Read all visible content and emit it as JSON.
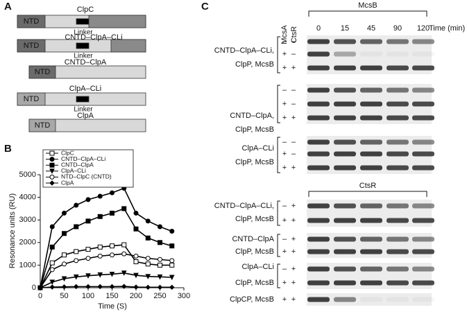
{
  "panel_a": {
    "letter": "A",
    "constructs": [
      {
        "name": "ClpC",
        "ntd": "NTD",
        "linker": "Linker"
      },
      {
        "name": "CNTD–ClpA–CLi",
        "ntd": "NTD",
        "linker": "Linker"
      },
      {
        "name": "CNTD–ClpA",
        "ntd": "NTD"
      },
      {
        "name": "ClpA–CLi",
        "ntd": "NTD",
        "linker": "Linker"
      },
      {
        "name": "ClpA",
        "ntd": "NTD"
      }
    ]
  },
  "chart_data": {
    "type": "line",
    "letter": "B",
    "xlabel": "Time (S)",
    "ylabel": "Resonance units (RU)",
    "x": [
      0,
      25,
      50,
      75,
      100,
      125,
      150,
      175,
      200,
      225,
      250,
      275
    ],
    "xlim": [
      0,
      300
    ],
    "xticks": [
      0,
      50,
      100,
      150,
      200,
      250,
      300
    ],
    "ylim": [
      0,
      5000
    ],
    "yticks": [
      0,
      1000,
      2000,
      3000,
      4000,
      5000
    ],
    "legend": "upper-left",
    "series": [
      {
        "name": "ClpC",
        "color": "#000000",
        "marker": "square-open",
        "values": [
          0,
          1100,
          1450,
          1600,
          1700,
          1800,
          1850,
          1900,
          1150,
          1050,
          1000,
          1000
        ]
      },
      {
        "name": "CNTD–ClpA–CLi",
        "color": "#000000",
        "marker": "circle",
        "values": [
          0,
          2700,
          3300,
          3650,
          3900,
          4050,
          4200,
          4400,
          3300,
          2950,
          2700,
          2500
        ]
      },
      {
        "name": "CNTD–ClpA",
        "color": "#000000",
        "marker": "square",
        "values": [
          0,
          1800,
          2400,
          2700,
          2950,
          3150,
          3300,
          3500,
          2600,
          2200,
          2000,
          1850
        ]
      },
      {
        "name": "ClpA–CLi",
        "color": "#000000",
        "marker": "triangle-down",
        "values": [
          0,
          250,
          400,
          480,
          530,
          570,
          600,
          650,
          550,
          500,
          480,
          460
        ]
      },
      {
        "name": "NTD–ClpC (CNTD)",
        "color": "#000000",
        "marker": "circle-open",
        "values": [
          0,
          800,
          1050,
          1200,
          1300,
          1400,
          1450,
          1500,
          1400,
          1300,
          1250,
          1200
        ]
      },
      {
        "name": "ClpA",
        "color": "#000000",
        "marker": "diamond",
        "values": [
          0,
          30,
          40,
          50,
          50,
          50,
          50,
          60,
          30,
          20,
          20,
          20
        ]
      }
    ]
  },
  "panel_c": {
    "letter": "C",
    "mcsa": "McsA",
    "ctsr": "CtsR",
    "mcsb": "McsB",
    "times": [
      "0",
      "15",
      "45",
      "90",
      "120"
    ],
    "time_unit": "Time (min)",
    "ctsr_bracket": "CtsR",
    "groups": [
      {
        "label": [
          "CNTD–ClpA–CLi,",
          "ClpP, McsB"
        ],
        "rows": [
          [
            "–",
            "–"
          ],
          [
            "+",
            "–"
          ],
          [
            "+",
            "+"
          ]
        ]
      },
      {
        "label": [
          "CNTD–ClpA,",
          "ClpP, McsB"
        ],
        "rows": [
          [
            "–",
            "–"
          ],
          [
            "+",
            "–"
          ],
          [
            "+",
            "+"
          ]
        ]
      },
      {
        "label": [
          "ClpA–CLi",
          "ClpP, McsB"
        ],
        "rows": [
          [
            "–",
            "–"
          ],
          [
            "+",
            "–"
          ],
          [
            "+",
            "+"
          ]
        ]
      },
      {
        "label": [
          "CNTD–ClpA–CLi,",
          "ClpP, McsB"
        ],
        "rows": [
          [
            "–",
            "+"
          ],
          [
            "+",
            "+"
          ]
        ]
      },
      {
        "label": [
          "CNTD–ClpA",
          "ClpP, McsB"
        ],
        "rows": [
          [
            "–",
            "+"
          ],
          [
            "+",
            "+"
          ]
        ]
      },
      {
        "label": [
          "ClpA–CLi",
          "ClpP, McsB"
        ],
        "rows": [
          [
            "–",
            "+"
          ],
          [
            "+",
            "+"
          ]
        ]
      },
      {
        "label": [
          "ClpCP, McsB"
        ],
        "rows": [
          [
            "+",
            "+"
          ]
        ]
      }
    ]
  }
}
